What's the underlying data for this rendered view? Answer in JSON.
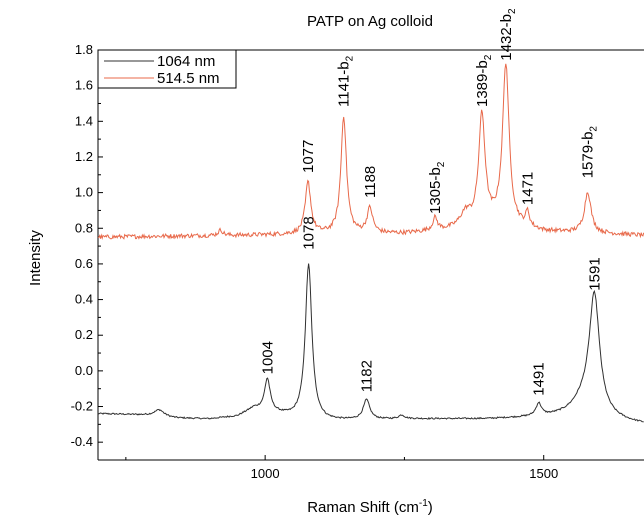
{
  "chart_data": {
    "type": "line",
    "title": "PATP on Ag colloid",
    "xlabel": "Raman Shift (cm",
    "xlabel_sup": "-1",
    "xlabel_end": ")",
    "ylabel": "Intensity",
    "xlim": [
      700,
      1680
    ],
    "ylim": [
      -0.5,
      1.8
    ],
    "yticks": [
      "1.8",
      "1.6",
      "1.4",
      "1.2",
      "1.0",
      "0.8",
      "0.6",
      "0.4",
      "0.2",
      "0.0",
      "-0.2",
      "-0.4"
    ],
    "ytick_values": [
      1.8,
      1.6,
      1.4,
      1.2,
      1.0,
      0.8,
      0.6,
      0.4,
      0.2,
      0.0,
      -0.2,
      -0.4
    ],
    "xticks": [
      "1000",
      "1500"
    ],
    "xtick_values": [
      1000,
      1500
    ],
    "legend_position": "top-left",
    "series": [
      {
        "name": "1064 nm",
        "color": "#303030",
        "baseline": [
          [
            700,
            -0.24
          ],
          [
            760,
            -0.245
          ],
          [
            800,
            -0.25
          ],
          [
            840,
            -0.265
          ],
          [
            900,
            -0.27
          ],
          [
            950,
            -0.255
          ],
          [
            980,
            -0.21
          ],
          [
            1050,
            -0.26
          ],
          [
            1110,
            -0.28
          ],
          [
            1250,
            -0.27
          ],
          [
            1400,
            -0.27
          ],
          [
            1500,
            -0.26
          ],
          [
            1560,
            -0.25
          ],
          [
            1650,
            -0.29
          ],
          [
            1680,
            -0.3
          ]
        ],
        "peaks": [
          [
            810,
            0.035,
            10
          ],
          [
            1004,
            0.18,
            6
          ],
          [
            1078,
            0.87,
            7
          ],
          [
            1182,
            0.11,
            7
          ],
          [
            1245,
            0.02,
            6
          ],
          [
            1491,
            0.07,
            6
          ],
          [
            1591,
            0.65,
            11
          ],
          [
            1575,
            0.08,
            25
          ]
        ],
        "noise": 0.004
      },
      {
        "name": "514.5 nm",
        "color": "#e8694a",
        "baseline": [
          [
            700,
            0.75
          ],
          [
            800,
            0.755
          ],
          [
            950,
            0.76
          ],
          [
            1050,
            0.765
          ],
          [
            1250,
            0.77
          ],
          [
            1380,
            0.8
          ],
          [
            1420,
            0.82
          ],
          [
            1460,
            0.8
          ],
          [
            1500,
            0.78
          ],
          [
            1600,
            0.77
          ],
          [
            1680,
            0.76
          ]
        ],
        "peaks": [
          [
            920,
            0.03,
            5
          ],
          [
            1077,
            0.29,
            6
          ],
          [
            1141,
            0.66,
            6
          ],
          [
            1188,
            0.14,
            6
          ],
          [
            1305,
            0.07,
            5
          ],
          [
            1360,
            0.08,
            12
          ],
          [
            1389,
            0.62,
            7
          ],
          [
            1432,
            0.9,
            7
          ],
          [
            1471,
            0.08,
            4
          ],
          [
            1579,
            0.23,
            7
          ]
        ],
        "noise": 0.012
      }
    ],
    "peak_labels": [
      {
        "text": "1078",
        "x": 1078,
        "y": 0.68,
        "sub": ""
      },
      {
        "text": "1004",
        "x": 1004,
        "y": -0.02,
        "sub": ""
      },
      {
        "text": "1182",
        "x": 1182,
        "y": -0.12,
        "sub": ""
      },
      {
        "text": "1491",
        "x": 1491,
        "y": -0.14,
        "sub": ""
      },
      {
        "text": "1591",
        "x": 1591,
        "y": 0.45,
        "sub": ""
      },
      {
        "text": "1077",
        "x": 1077,
        "y": 1.11,
        "sub": ""
      },
      {
        "text": "1141-b",
        "x": 1141,
        "y": 1.48,
        "sub": "2"
      },
      {
        "text": "1188",
        "x": 1188,
        "y": 0.97,
        "sub": ""
      },
      {
        "text": "1305-b",
        "x": 1305,
        "y": 0.88,
        "sub": "2"
      },
      {
        "text": "1389-b",
        "x": 1389,
        "y": 1.48,
        "sub": "2"
      },
      {
        "text": "1432-b",
        "x": 1432,
        "y": 1.74,
        "sub": "2"
      },
      {
        "text": "1471",
        "x": 1471,
        "y": 0.93,
        "sub": ""
      },
      {
        "text": "1579-b",
        "x": 1579,
        "y": 1.08,
        "sub": "2"
      }
    ]
  }
}
